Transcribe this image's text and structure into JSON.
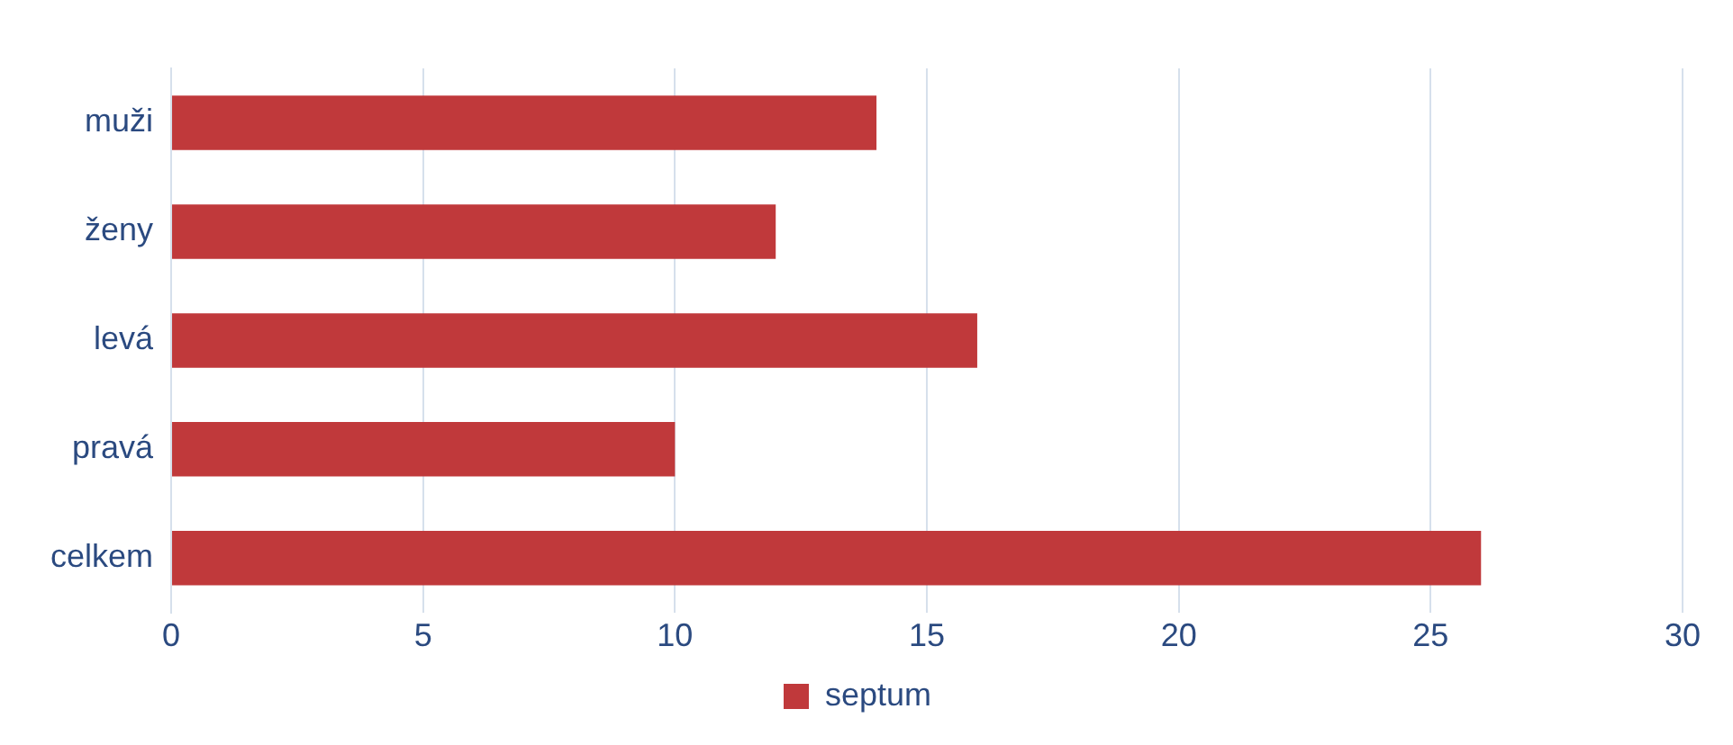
{
  "chart_data": {
    "type": "bar",
    "orientation": "horizontal",
    "categories": [
      "muži",
      "ženy",
      "levá",
      "pravá",
      "celkem"
    ],
    "series": [
      {
        "name": "septum",
        "color": "#c0393b",
        "values": [
          14,
          12,
          16,
          10,
          26
        ]
      }
    ],
    "xlim": [
      0,
      30
    ],
    "xticks": [
      0,
      5,
      10,
      15,
      20,
      25,
      30
    ],
    "grid": "x",
    "legend": "bottom"
  }
}
